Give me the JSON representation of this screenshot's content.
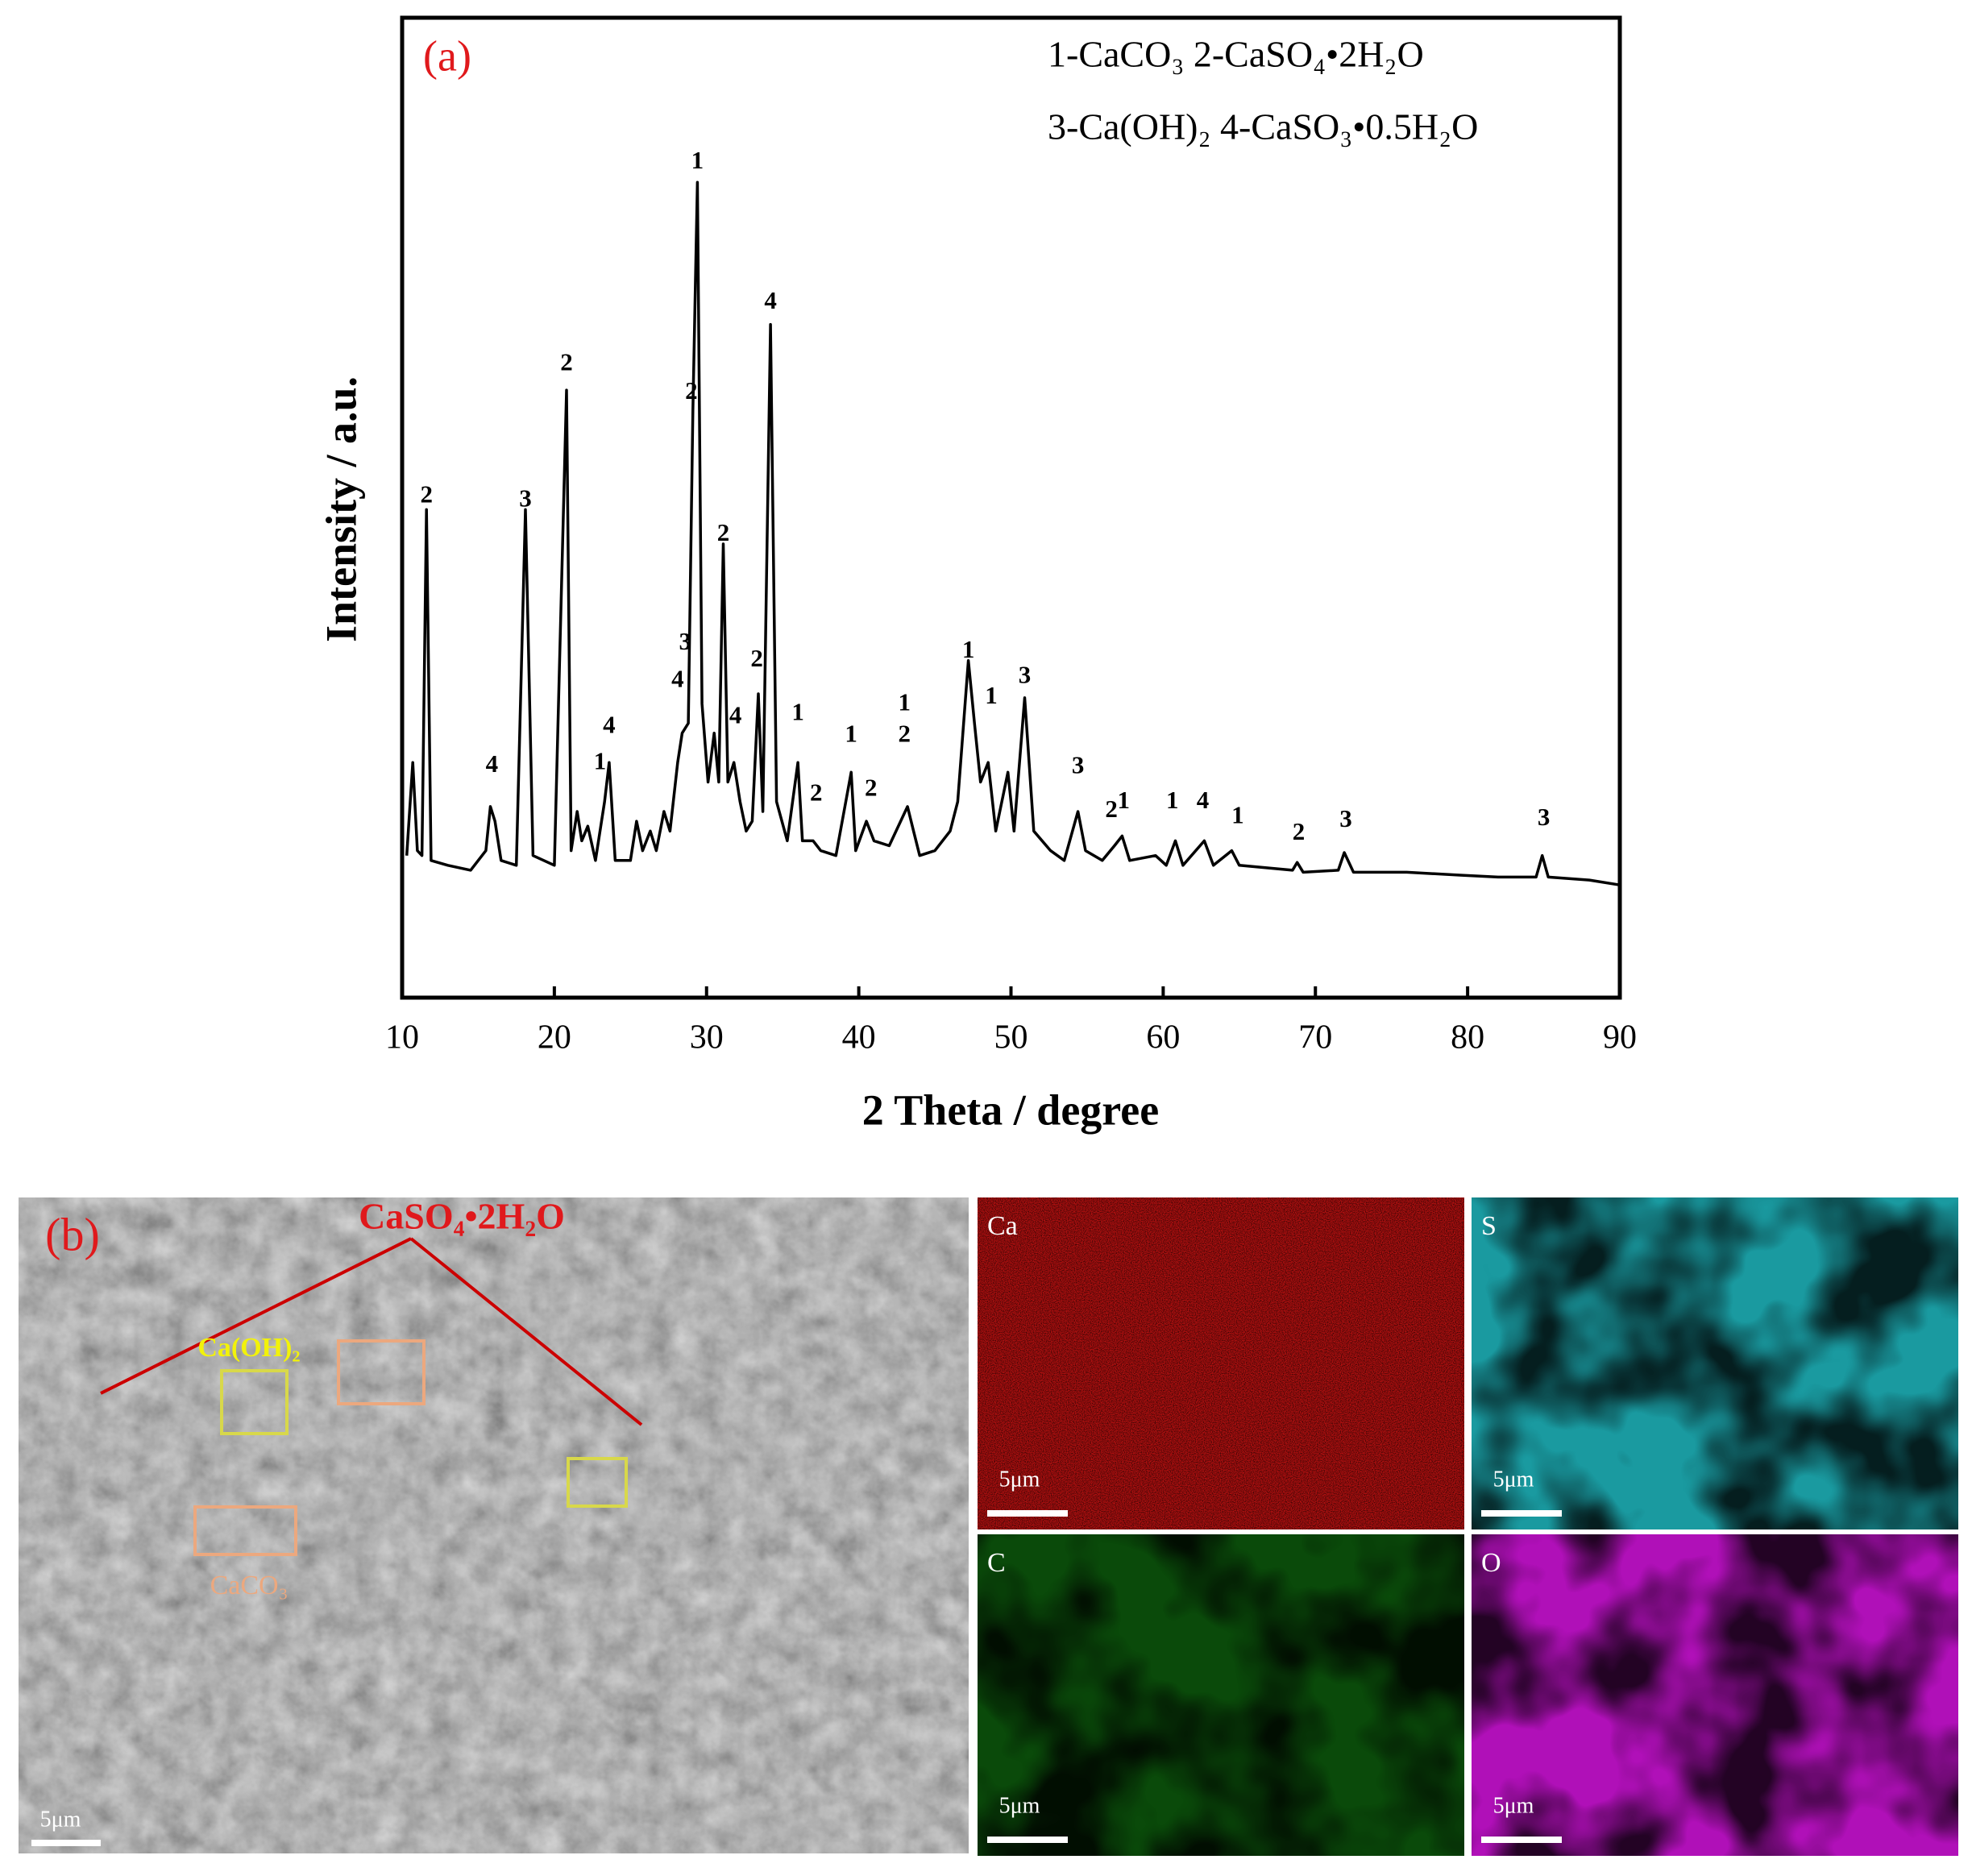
{
  "chart_data": {
    "type": "line",
    "panel_label": "(a)",
    "xlabel": "2 Theta / degree",
    "ylabel": "Intensity / a.u.",
    "legend_lines": [
      "1-CaCO₃    2-CaSO₄•2H₂O",
      "3-Ca(OH)₂ 4-CaSO₃•0.5H₂O"
    ],
    "xlim": [
      10,
      90
    ],
    "xticks": [
      10,
      20,
      30,
      40,
      50,
      60,
      70,
      80,
      90
    ],
    "ylim": [
      0,
      100
    ],
    "x": [
      10.3,
      10.7,
      11.0,
      11.3,
      11.6,
      11.9,
      13,
      14.5,
      15.5,
      15.8,
      16.1,
      16.5,
      17.5,
      18.1,
      18.6,
      20,
      20.8,
      21.1,
      21.5,
      21.8,
      22.2,
      22.7,
      23.3,
      23.6,
      24,
      25,
      25.4,
      25.8,
      26.3,
      26.7,
      27.2,
      27.6,
      28.1,
      28.4,
      28.8,
      29.1,
      29.4,
      29.7,
      30.1,
      30.5,
      30.8,
      31.1,
      31.4,
      31.8,
      32.2,
      32.6,
      33.0,
      33.4,
      33.7,
      34.2,
      34.6,
      35.3,
      36.0,
      36.3,
      37,
      37.5,
      38.5,
      39.5,
      39.8,
      40.5,
      41,
      42,
      43.2,
      43.6,
      44,
      45,
      46.0,
      46.5,
      47.2,
      47.6,
      48.0,
      48.5,
      49,
      49.8,
      50.2,
      50.9,
      51.5,
      52.6,
      53.5,
      54.4,
      54.9,
      56,
      56.8,
      57.3,
      57.8,
      59.5,
      60.2,
      60.8,
      61.3,
      62.7,
      63.3,
      64.5,
      65,
      68.5,
      68.8,
      69.2,
      71.5,
      71.9,
      72.5,
      76,
      79.5,
      82,
      84.5,
      84.9,
      85.3,
      88,
      90
    ],
    "series": [
      {
        "color": "#000000",
        "values": [
          14.5,
          24,
          15,
          14.5,
          49.8,
          14,
          13.5,
          13,
          15,
          19.5,
          18,
          14,
          13.5,
          49.8,
          14.5,
          13.5,
          62,
          15,
          19,
          16,
          17.5,
          14,
          20,
          24,
          14,
          14,
          18,
          15,
          17,
          15,
          19,
          17,
          24,
          27,
          28,
          60,
          83.2,
          30,
          22,
          27,
          22,
          46.3,
          22,
          24,
          20,
          17,
          18,
          31,
          19,
          68.7,
          20,
          16,
          24,
          16,
          16,
          15,
          14.5,
          23,
          15,
          18,
          16,
          15.5,
          19.5,
          17,
          14.5,
          15,
          17,
          20,
          34.4,
          28,
          22,
          24,
          17,
          23,
          17,
          30.6,
          17,
          15,
          14,
          19,
          15,
          14,
          15.5,
          16.5,
          14,
          14.5,
          13.5,
          16,
          13.5,
          16,
          13.5,
          15,
          13.5,
          13,
          13.8,
          12.8,
          13,
          14.8,
          12.8,
          12.8,
          12.5,
          12.3,
          12.3,
          14.5,
          12.3,
          12,
          11.5
        ]
      }
    ],
    "annotations": [
      {
        "text": "2",
        "x": 11.6,
        "y": 51.1
      },
      {
        "text": "4",
        "x": 15.9,
        "y": 23.6
      },
      {
        "text": "3",
        "x": 18.1,
        "y": 50.7
      },
      {
        "text": "2",
        "x": 20.8,
        "y": 64.6
      },
      {
        "text": "1",
        "x": 23.0,
        "y": 23.9
      },
      {
        "text": "4",
        "x": 23.6,
        "y": 27.6
      },
      {
        "text": "4",
        "x": 28.1,
        "y": 32.3
      },
      {
        "text": "3",
        "x": 28.6,
        "y": 36.1
      },
      {
        "text": "2",
        "x": 29.0,
        "y": 61.7
      },
      {
        "text": "1",
        "x": 29.4,
        "y": 85.2
      },
      {
        "text": "2",
        "x": 31.1,
        "y": 47.2
      },
      {
        "text": "4",
        "x": 31.9,
        "y": 28.6
      },
      {
        "text": "2",
        "x": 33.3,
        "y": 34.4
      },
      {
        "text": "4",
        "x": 34.2,
        "y": 70.9
      },
      {
        "text": "1",
        "x": 36.0,
        "y": 28.9
      },
      {
        "text": "2",
        "x": 37.2,
        "y": 20.7
      },
      {
        "text": "1",
        "x": 39.5,
        "y": 26.7
      },
      {
        "text": "2",
        "x": 40.8,
        "y": 21.2
      },
      {
        "text": "1",
        "x": 43.0,
        "y": 29.9
      },
      {
        "text": "2",
        "x": 43.0,
        "y": 26.7
      },
      {
        "text": "1",
        "x": 47.2,
        "y": 35.3
      },
      {
        "text": "1",
        "x": 48.7,
        "y": 30.6
      },
      {
        "text": "3",
        "x": 50.9,
        "y": 32.7
      },
      {
        "text": "3",
        "x": 54.4,
        "y": 23.5
      },
      {
        "text": "2",
        "x": 56.6,
        "y": 19.0
      },
      {
        "text": "1",
        "x": 57.4,
        "y": 19.9
      },
      {
        "text": "1",
        "x": 60.6,
        "y": 19.9
      },
      {
        "text": "4",
        "x": 62.6,
        "y": 19.9
      },
      {
        "text": "1",
        "x": 64.9,
        "y": 18.4
      },
      {
        "text": "2",
        "x": 68.9,
        "y": 16.7
      },
      {
        "text": "3",
        "x": 72.0,
        "y": 18.0
      },
      {
        "text": "3",
        "x": 85.0,
        "y": 18.2
      }
    ]
  },
  "sem_panel": {
    "panel_label": "(b)",
    "annotation": "CaSO₄•2H₂O",
    "label_caoh": "Ca(OH)₂",
    "label_caco": "CaCO₃",
    "scale_bar": "5μm",
    "maps": [
      {
        "element": "Ca",
        "scale_bar": "5μm"
      },
      {
        "element": "S",
        "scale_bar": "5μm"
      },
      {
        "element": "C",
        "scale_bar": "5μm"
      },
      {
        "element": "O",
        "scale_bar": "5μm"
      }
    ]
  }
}
